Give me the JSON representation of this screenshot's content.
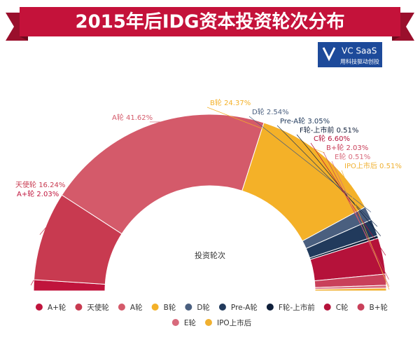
{
  "chart_data": {
    "type": "half-donut",
    "title": "2015年后IDG资本投资轮次分布",
    "series_name": "投资轮次",
    "categories": [
      "A+轮",
      "天使轮",
      "A轮",
      "B轮",
      "D轮",
      "Pre-A轮",
      "F轮-上市前",
      "C轮",
      "B+轮",
      "E轮",
      "IPO上市后"
    ],
    "values": [
      2.03,
      16.24,
      41.62,
      24.37,
      2.54,
      3.05,
      0.51,
      6.6,
      2.03,
      0.51,
      0.51
    ],
    "value_labels": [
      "2.03%",
      "16.24%",
      "41.62%",
      "24.37%",
      "2.54%",
      "3.05%",
      "0.51%",
      "6.60%",
      "2.03%",
      "0.51%",
      "0.51%"
    ],
    "colors": [
      "#c0143c",
      "#c83a50",
      "#d45a6a",
      "#f4b128",
      "#4a5f7f",
      "#213a5c",
      "#0f1f3a",
      "#b5123a",
      "#c9405a",
      "#d86a7c",
      "#f0b030"
    ],
    "legend": "bottom"
  },
  "logo": {
    "text": "VC SaaS",
    "tagline": "用科技驱动创投"
  }
}
